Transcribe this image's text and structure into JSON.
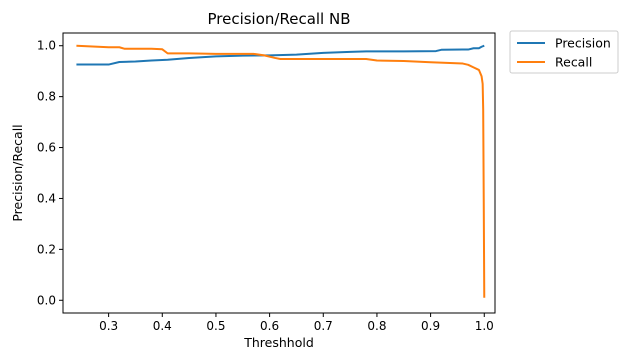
{
  "chart_data": {
    "type": "line",
    "title": "Precision/Recall NB",
    "xlabel": "Threshhold",
    "ylabel": "Precision/Recall",
    "xlim": [
      0.215,
      1.02
    ],
    "ylim": [
      -0.05,
      1.05
    ],
    "xticks": [
      0.3,
      0.4,
      0.5,
      0.6,
      0.7,
      0.8,
      0.9,
      1.0
    ],
    "xtick_labels": [
      "0.3",
      "0.4",
      "0.5",
      "0.6",
      "0.7",
      "0.8",
      "0.9",
      "1.0"
    ],
    "yticks": [
      0.0,
      0.2,
      0.4,
      0.6,
      0.8,
      1.0
    ],
    "ytick_labels": [
      "0.0",
      "0.2",
      "0.4",
      "0.6",
      "0.8",
      "1.0"
    ],
    "grid": false,
    "legend_position": "outside-top-right",
    "series": [
      {
        "name": "Precision",
        "color": "#1f77b4",
        "x": [
          0.24,
          0.3,
          0.32,
          0.35,
          0.38,
          0.41,
          0.45,
          0.5,
          0.55,
          0.6,
          0.65,
          0.7,
          0.75,
          0.78,
          0.85,
          0.91,
          0.92,
          0.96,
          0.97,
          0.98,
          0.99,
          0.995,
          1.0
        ],
        "y": [
          0.926,
          0.926,
          0.936,
          0.938,
          0.942,
          0.945,
          0.952,
          0.958,
          0.961,
          0.962,
          0.965,
          0.972,
          0.976,
          0.978,
          0.978,
          0.979,
          0.984,
          0.985,
          0.985,
          0.99,
          0.99,
          0.996,
          1.0
        ]
      },
      {
        "name": "Recall",
        "color": "#ff7f0e",
        "x": [
          0.24,
          0.3,
          0.32,
          0.33,
          0.38,
          0.4,
          0.41,
          0.45,
          0.5,
          0.55,
          0.57,
          0.59,
          0.61,
          0.62,
          0.7,
          0.78,
          0.8,
          0.85,
          0.9,
          0.96,
          0.97,
          0.98,
          0.99,
          0.995,
          0.997,
          0.998,
          0.999,
          1.0
        ],
        "y": [
          1.0,
          0.994,
          0.994,
          0.988,
          0.988,
          0.986,
          0.97,
          0.97,
          0.968,
          0.968,
          0.968,
          0.962,
          0.952,
          0.948,
          0.948,
          0.948,
          0.942,
          0.94,
          0.935,
          0.93,
          0.925,
          0.915,
          0.905,
          0.88,
          0.85,
          0.75,
          0.4,
          0.01
        ]
      }
    ]
  }
}
